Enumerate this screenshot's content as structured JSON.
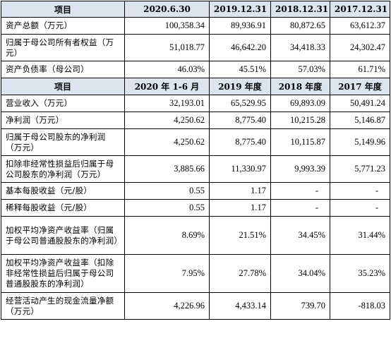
{
  "header1": [
    "项目",
    "2020.6.30",
    "2019.12.31",
    "2018.12.31",
    "2017.12.31"
  ],
  "balance_rows": [
    {
      "label": "资产总额（万元）",
      "values": [
        "100,358.34",
        "89,936.91",
        "80,872.65",
        "63,612.37"
      ]
    },
    {
      "label": "归属于母公司所有者权益（万元）",
      "values": [
        "51,018.77",
        "46,642.20",
        "34,418.33",
        "24,302.47"
      ]
    },
    {
      "label": "资产负债率（母公司）",
      "values": [
        "46.03%",
        "45.51%",
        "57.03%",
        "61.71%"
      ]
    }
  ],
  "header2": [
    "项目",
    "2020 年 1-6 月",
    "2019 年度",
    "2018 年度",
    "2017 年度"
  ],
  "income_rows": [
    {
      "label": "营业收入（万元）",
      "values": [
        "32,193.01",
        "65,529.95",
        "69,893.09",
        "50,491.24"
      ]
    },
    {
      "label": "净利润（万元）",
      "values": [
        "4,250.62",
        "8,775.40",
        "10,215.28",
        "5,146.87"
      ]
    },
    {
      "label": "归属于母公司股东的净利润（万元）",
      "values": [
        "4,250.62",
        "8,775.40",
        "10,115.87",
        "5,149.96"
      ]
    },
    {
      "label": "扣除非经常性损益后归属于母公司股东的净利润（万元）",
      "values": [
        "3,885.66",
        "11,330.97",
        "9,993.39",
        "5,771.23"
      ]
    },
    {
      "label": "基本每股收益（元/股）",
      "values": [
        "0.55",
        "1.17",
        "-",
        "-"
      ]
    },
    {
      "label": "稀释每股收益（元/股）",
      "values": [
        "0.55",
        "1.17",
        "-",
        "-"
      ]
    },
    {
      "label": "加权平均净资产收益率（归属于母公司普通股股东的净利润）",
      "values": [
        "8.69%",
        "21.51%",
        "34.45%",
        "31.44%"
      ]
    },
    {
      "label": "加权平均净资产收益率（扣除非经常性损益后归属于母公司普通股股东的净利润）",
      "values": [
        "7.95%",
        "27.78%",
        "34.04%",
        "35.23%"
      ]
    },
    {
      "label": "经营活动产生的现金流量净额（万元）",
      "values": [
        "4,226.96",
        "4,433.14",
        "739.70",
        "-818.03"
      ]
    }
  ]
}
